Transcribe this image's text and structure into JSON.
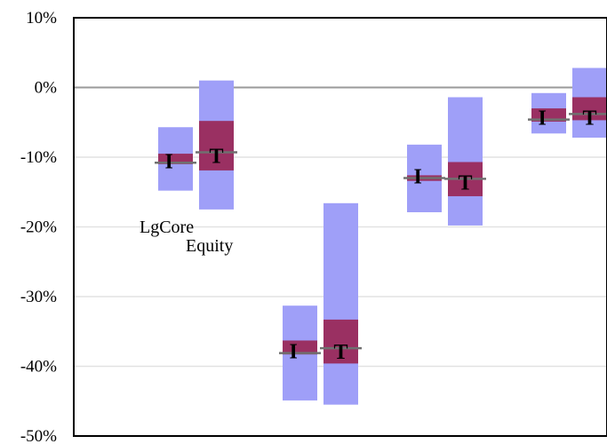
{
  "chart_data": {
    "type": "bar",
    "subtype": "floating-range",
    "title": "",
    "xlabel": "",
    "ylabel": "",
    "ylim": [
      -50,
      10
    ],
    "y_ticks": [
      10,
      0,
      -10,
      -20,
      -30,
      -40,
      -50
    ],
    "y_tick_labels": [
      "10%",
      "0%",
      "-10%",
      "-20%",
      "-30%",
      "-40%",
      "-50%"
    ],
    "grid": true,
    "zero_line": true,
    "colors": {
      "outer_range": "#9f9ff8",
      "inner_range": "#9a3062",
      "median_line": "#707070",
      "grid": "#e2e2e2",
      "zero_line": "#9a9a9a"
    },
    "groups": [
      {
        "label": "LgCore",
        "bars": [
          {
            "marker": "I",
            "outer": [
              -14.8,
              -5.7
            ],
            "inner": [
              -11.0,
              -9.5
            ],
            "median": -10.8
          },
          {
            "marker": "T",
            "outer": [
              -17.5,
              1.0
            ],
            "inner": [
              -11.9,
              -4.8
            ],
            "median": -9.3
          }
        ]
      },
      {
        "label": "Equity",
        "bars": [
          {
            "marker": "I",
            "outer": [
              -44.9,
              -31.3
            ],
            "inner": [
              -38.3,
              -36.3
            ],
            "median": -38.1
          },
          {
            "marker": "T",
            "outer": [
              -45.5,
              -16.6
            ],
            "inner": [
              -39.6,
              -33.3
            ],
            "median": -37.4
          }
        ]
      },
      {
        "label": "",
        "bars": [
          {
            "marker": "I",
            "outer": [
              -17.9,
              -8.2
            ],
            "inner": [
              -13.4,
              -12.6
            ],
            "median": -13.0
          },
          {
            "marker": "T",
            "outer": [
              -19.8,
              -1.4
            ],
            "inner": [
              -15.6,
              -10.7
            ],
            "median": -13.1
          }
        ]
      },
      {
        "label": "",
        "bars": [
          {
            "marker": "I",
            "outer": [
              -6.6,
              -0.8
            ],
            "inner": [
              -4.9,
              -3.0
            ],
            "median": -4.6
          },
          {
            "marker": "T",
            "outer": [
              -7.2,
              2.8
            ],
            "inner": [
              -4.7,
              -1.4
            ],
            "median": -3.8
          }
        ]
      }
    ]
  }
}
